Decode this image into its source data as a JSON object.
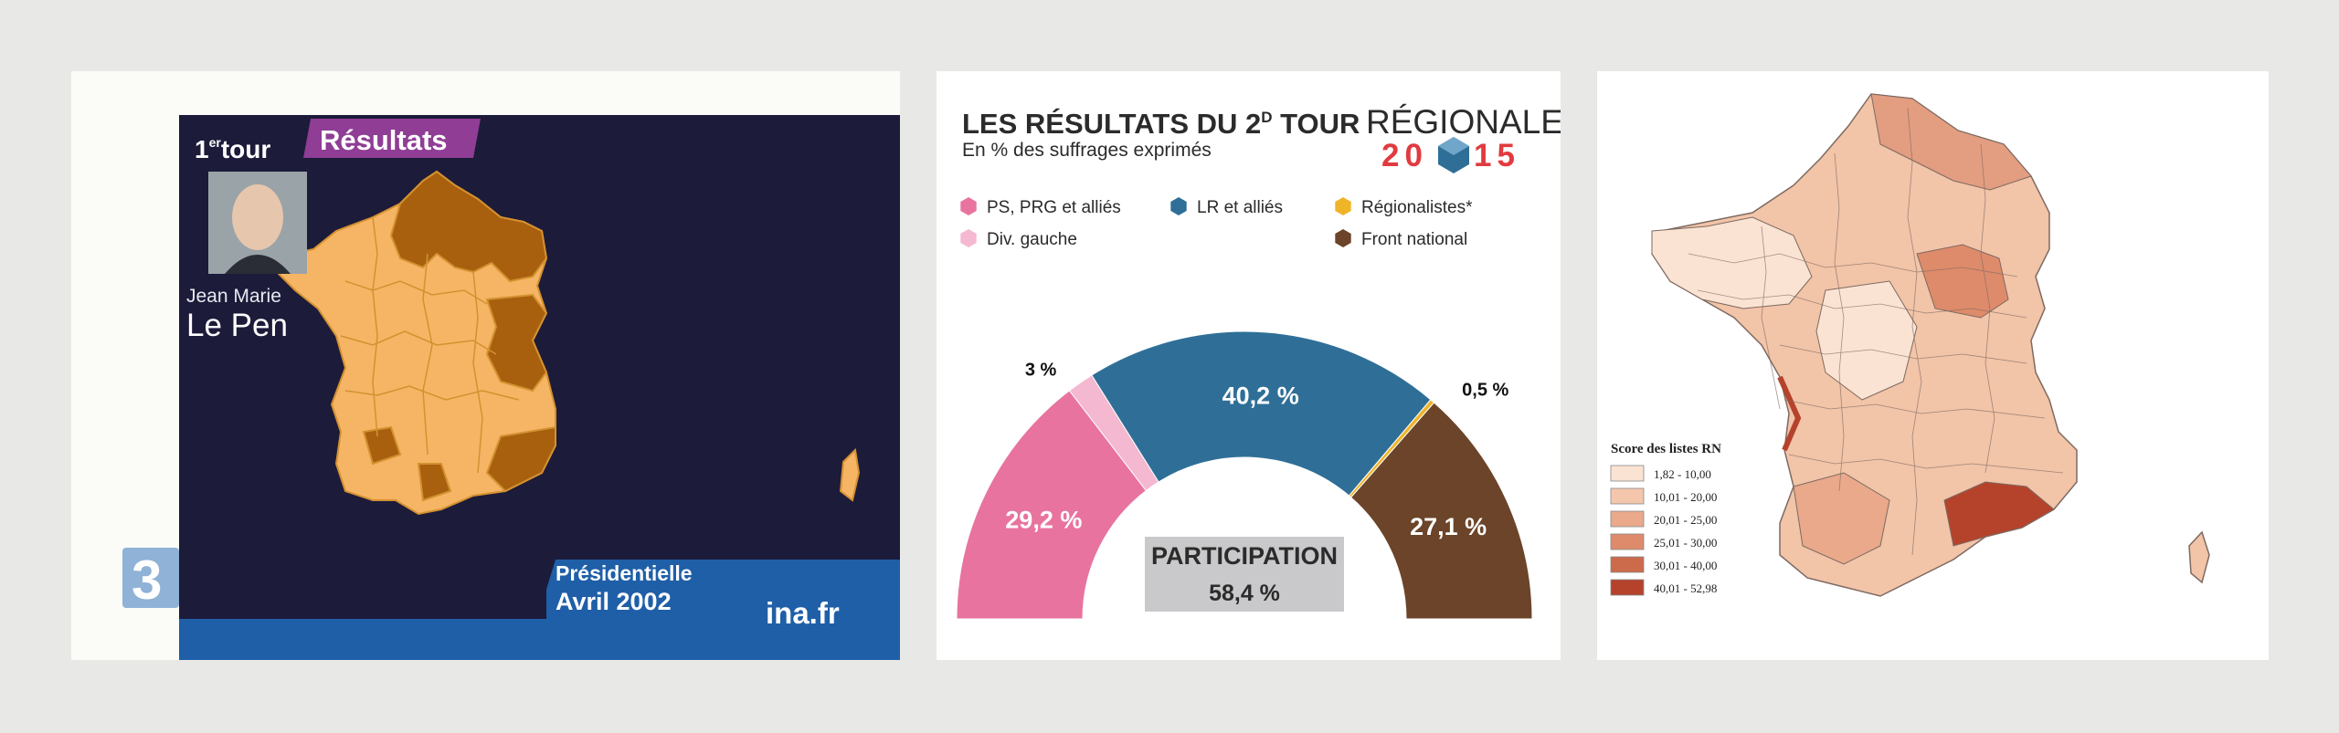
{
  "tv": {
    "round_label": "1",
    "round_sup": "er",
    "round_word": "tour",
    "results_tag": "Résultats",
    "person_first": "Jean Marie",
    "person_last": "Le Pen",
    "election": "Présidentielle",
    "date": "Avril 2002",
    "watermark": "ina.fr",
    "channel_logo": "3",
    "colors": {
      "bg": "#1c1b3a",
      "map_light": "#f5b565",
      "map_dark": "#a8600f",
      "tag": "#8f3d95",
      "bar": "#1f5fa8"
    }
  },
  "infographic": {
    "title_main": "LES RÉSULTATS DU 2",
    "title_sup": "D",
    "title_end": " TOUR",
    "subtitle": "En % des suffrages exprimés",
    "logo_word": "RÉGIONALES",
    "logo_year_left": "20",
    "logo_year_right": "15",
    "legend": [
      {
        "label": "PS, PRG et alliés",
        "color": "#e8739f"
      },
      {
        "label": "LR et alliés",
        "color": "#2f6f97"
      },
      {
        "label": "Régionalistes*",
        "color": "#f0b429"
      },
      {
        "label": "Div. gauche",
        "color": "#f4b8d0"
      },
      {
        "label": "Front national",
        "color": "#6b4429"
      }
    ],
    "participation_label": "PARTICIPATION",
    "participation_value": "58,4 %",
    "chart_data": {
      "type": "pie",
      "title": "LES RÉSULTATS DU 2D TOUR",
      "subtitle": "En % des suffrages exprimés",
      "categories": [
        "PS, PRG et alliés",
        "Div. gauche",
        "LR et alliés",
        "Régionalistes*",
        "Front national"
      ],
      "values": [
        29.2,
        3.0,
        40.2,
        0.5,
        27.1
      ],
      "labels": [
        "29,2 %",
        "3 %",
        "40,2 %",
        "0,5 %",
        "27,1 %"
      ],
      "colors": [
        "#e8739f",
        "#f4b8d0",
        "#2f6f97",
        "#f0b429",
        "#6b4429"
      ],
      "shape": "semicircle"
    }
  },
  "rn_map": {
    "legend_title": "Score des listes RN",
    "classes": [
      {
        "label": "1,82 - 10,00",
        "color": "#fbe3d3"
      },
      {
        "label": "10,01 - 20,00",
        "color": "#f4c7ac"
      },
      {
        "label": "20,01 - 25,00",
        "color": "#e9a98a"
      },
      {
        "label": "25,01 - 30,00",
        "color": "#de8b6b"
      },
      {
        "label": "30,01 - 40,00",
        "color": "#cc6a4c"
      },
      {
        "label": "40,01 - 52,98",
        "color": "#b5432c"
      }
    ]
  }
}
